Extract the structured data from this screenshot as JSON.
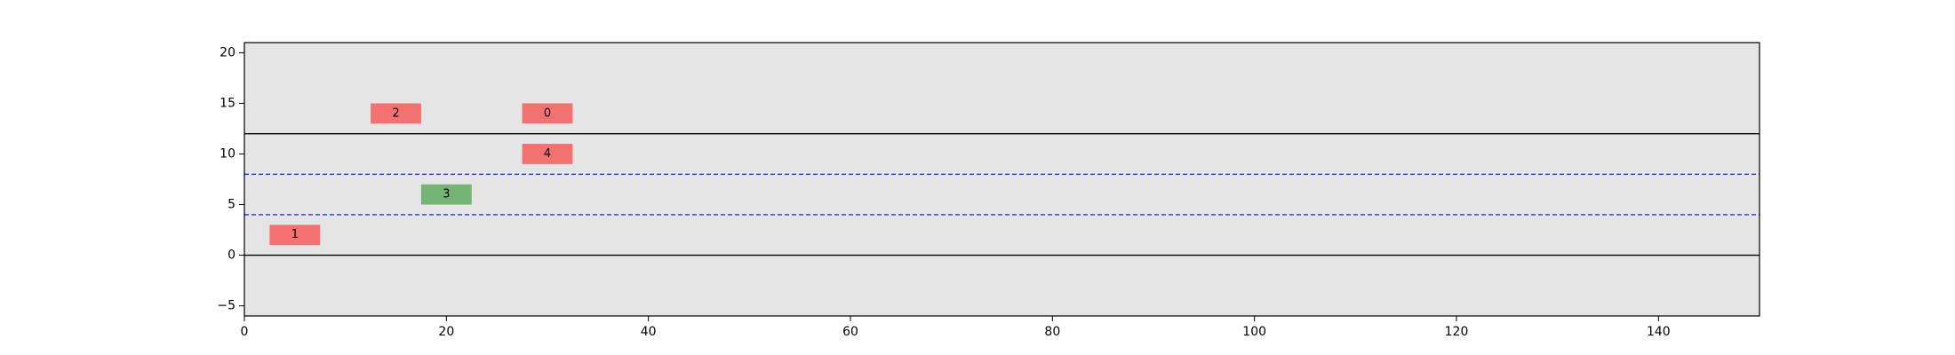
{
  "chart_data": {
    "type": "scatter",
    "title": "",
    "xlabel": "",
    "ylabel": "",
    "xlim": [
      0,
      150
    ],
    "ylim": [
      -6,
      21
    ],
    "x_ticks": [
      0,
      20,
      40,
      60,
      80,
      100,
      120,
      140
    ],
    "y_ticks": [
      -5,
      0,
      5,
      10,
      15,
      20
    ],
    "grid": false,
    "background": "#e5e5e5",
    "solid_lines": [
      {
        "y": 0,
        "color": "#000000"
      },
      {
        "y": 12,
        "color": "#000000"
      }
    ],
    "dashed_lines": [
      {
        "y": 4,
        "color": "#0000ff"
      },
      {
        "y": 8,
        "color": "#0000ff"
      }
    ],
    "boxes": [
      {
        "label": "1",
        "x": 5,
        "y": 2,
        "width": 5,
        "height": 2,
        "color": "#f47171"
      },
      {
        "label": "2",
        "x": 15,
        "y": 14,
        "width": 5,
        "height": 2,
        "color": "#f47171"
      },
      {
        "label": "3",
        "x": 20,
        "y": 6,
        "width": 5,
        "height": 2,
        "color": "#74b474"
      },
      {
        "label": "0",
        "x": 30,
        "y": 14,
        "width": 5,
        "height": 2,
        "color": "#f47171"
      },
      {
        "label": "4",
        "x": 30,
        "y": 10,
        "width": 5,
        "height": 2,
        "color": "#f47171"
      }
    ]
  }
}
